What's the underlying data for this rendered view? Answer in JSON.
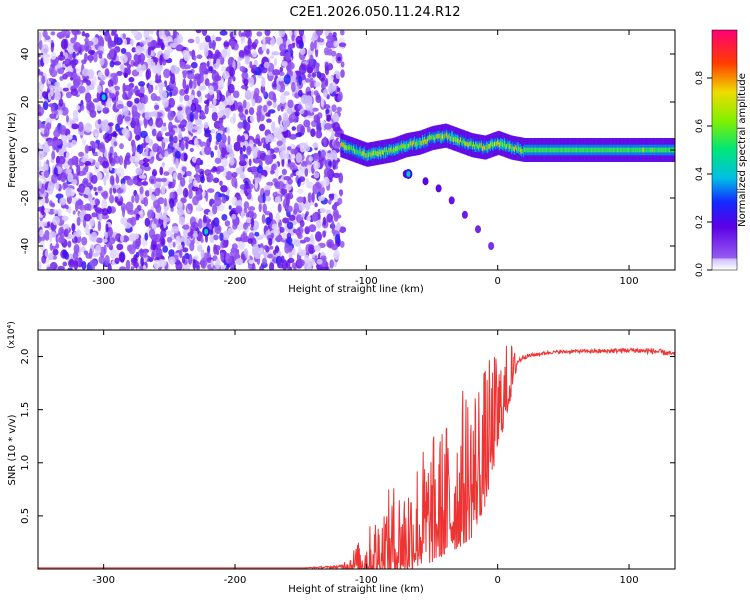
{
  "title": "C2E1.2026.050.11.24.R12",
  "chart_data": [
    {
      "type": "heatmap",
      "xlabel": "Height of straight line (km)",
      "ylabel": "Frequency (Hz)",
      "xlim": [
        -350,
        135
      ],
      "ylim": [
        -50,
        50
      ],
      "xticks": [
        -300,
        -200,
        -100,
        0,
        100
      ],
      "yticks": [
        -40,
        -20,
        0,
        20,
        40
      ],
      "colorbar": {
        "label": "Normalized spectral amplitude",
        "range": [
          0,
          1
        ],
        "ticks": [
          0.0,
          0.2,
          0.4,
          0.6,
          0.8
        ],
        "tick_labels": [
          "0.0",
          "0.2",
          "0.4",
          "0.6",
          "0.8"
        ]
      },
      "features": [
        {
          "name": "noise-field",
          "x_range": [
            -350,
            -118
          ],
          "y_range": [
            -50,
            50
          ],
          "amplitude": 0.12
        },
        {
          "name": "carrier-line",
          "points": [
            [
              -120,
              2
            ],
            [
              -110,
              0
            ],
            [
              -100,
              -2
            ],
            [
              -90,
              -1
            ],
            [
              -80,
              0
            ],
            [
              -70,
              2
            ],
            [
              -60,
              3
            ],
            [
              -50,
              5
            ],
            [
              -40,
              6
            ],
            [
              -30,
              4
            ],
            [
              -20,
              2
            ],
            [
              -10,
              1
            ],
            [
              0,
              3
            ],
            [
              10,
              1
            ],
            [
              20,
              0
            ],
            [
              40,
              0
            ],
            [
              80,
              0
            ],
            [
              135,
              0
            ]
          ],
          "amplitude": 0.55
        },
        {
          "name": "secondary-branch",
          "points": [
            [
              -70,
              -10
            ],
            [
              -55,
              -13
            ],
            [
              -45,
              -16
            ],
            [
              -35,
              -21
            ],
            [
              -25,
              -27
            ],
            [
              -15,
              -33
            ],
            [
              -5,
              -40
            ]
          ],
          "amplitude": 0.2
        },
        {
          "name": "hot-spots",
          "points": [
            [
              -300,
              22
            ],
            [
              -222,
              -34
            ],
            [
              -68,
              -10
            ]
          ],
          "amplitude": 0.4
        }
      ]
    },
    {
      "type": "line",
      "xlabel": "Height of straight line (km)",
      "ylabel": "SNR (10 * v/v)",
      "y_scale_label": "(x10⁴)",
      "xlim": [
        -350,
        135
      ],
      "ylim": [
        0,
        2.25
      ],
      "xticks": [
        -300,
        -200,
        -100,
        0,
        100
      ],
      "yticks": [
        0.5,
        1.0,
        1.5,
        2.0
      ],
      "ytick_labels": [
        "0.5",
        "1.0",
        "1.5",
        "2.0"
      ],
      "series": [
        {
          "color": "#ee3333",
          "x": [
            -350,
            -300,
            -250,
            -200,
            -150,
            -120,
            -100,
            -90,
            -80,
            -70,
            -60,
            -50,
            -40,
            -30,
            -20,
            -10,
            0,
            10,
            15,
            20,
            30,
            40,
            60,
            80,
            100,
            120,
            135
          ],
          "y": [
            0.01,
            0.01,
            0.01,
            0.01,
            0.01,
            0.02,
            0.1,
            0.18,
            0.25,
            0.3,
            0.42,
            0.48,
            0.58,
            0.7,
            0.85,
            1.05,
            1.45,
            1.8,
            1.95,
            2.0,
            2.02,
            2.04,
            2.05,
            2.05,
            2.06,
            2.05,
            2.02
          ],
          "noise_amplitude": [
            0,
            0,
            0,
            0,
            0,
            0.02,
            0.25,
            0.4,
            0.55,
            0.6,
            0.7,
            0.75,
            0.8,
            0.9,
            1.0,
            0.85,
            0.6,
            0.35,
            0.05,
            0.03,
            0.02,
            0.02,
            0.02,
            0.03,
            0.03,
            0.04,
            0.03
          ]
        }
      ]
    }
  ]
}
